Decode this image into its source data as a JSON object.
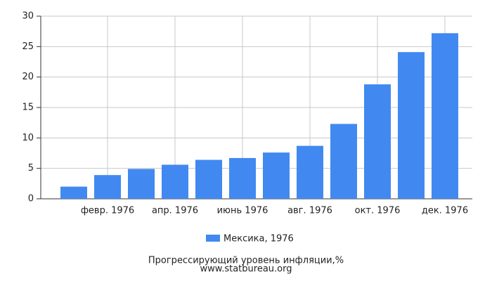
{
  "chart_data": {
    "type": "bar",
    "title": "Прогрессирующий уровень инфляции,%",
    "source": "www.statbureau.org",
    "categories": [
      null,
      "февр. 1976",
      null,
      "апр. 1976",
      null,
      "июнь 1976",
      null,
      "авг. 1976",
      null,
      "окт. 1976",
      null,
      "дек. 1976"
    ],
    "series": [
      {
        "name": "Мексика, 1976",
        "color": "#4189f0",
        "values": [
          2.0,
          3.9,
          4.9,
          5.6,
          6.4,
          6.7,
          7.6,
          8.7,
          12.3,
          18.8,
          24.1,
          27.2
        ]
      }
    ],
    "ylim": [
      0,
      30
    ],
    "yticks": [
      0,
      5,
      10,
      15,
      20,
      25,
      30
    ],
    "grid": true
  }
}
